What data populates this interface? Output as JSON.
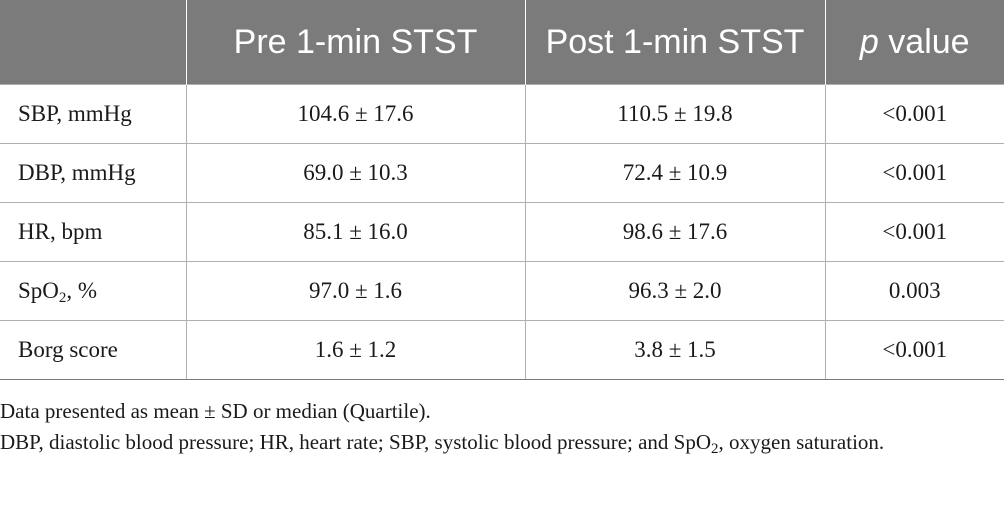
{
  "table": {
    "headers": {
      "blank": "",
      "pre": "Pre 1-min STST",
      "post": "Post 1-min STST",
      "p_italic": "p",
      "p_rest": " value"
    },
    "rows": [
      {
        "label": "SBP, mmHg",
        "pre": "104.6 ± 17.6",
        "post": "110.5 ± 19.8",
        "p": "<0.001"
      },
      {
        "label": "DBP, mmHg",
        "pre": "69.0 ± 10.3",
        "post": "72.4 ± 10.9",
        "p": "<0.001"
      },
      {
        "label": "HR, bpm",
        "pre": "85.1 ± 16.0",
        "post": "98.6 ± 17.6",
        "p": "<0.001"
      },
      {
        "label_main": "SpO",
        "label_sub": "2",
        "label_rest": ", %",
        "pre": "97.0 ± 1.6",
        "post": "96.3 ± 2.0",
        "p": "0.003"
      },
      {
        "label": "Borg score",
        "pre": "1.6 ± 1.2",
        "post": "3.8 ± 1.5",
        "p": "<0.001"
      }
    ]
  },
  "notes": {
    "line1": "Data presented as mean ± SD or median (Quartile).",
    "line2_a": "DBP, diastolic blood pressure; HR, heart rate; SBP, systolic blood pressure; and SpO",
    "line2_sub": "2",
    "line2_b": ", oxygen saturation."
  }
}
